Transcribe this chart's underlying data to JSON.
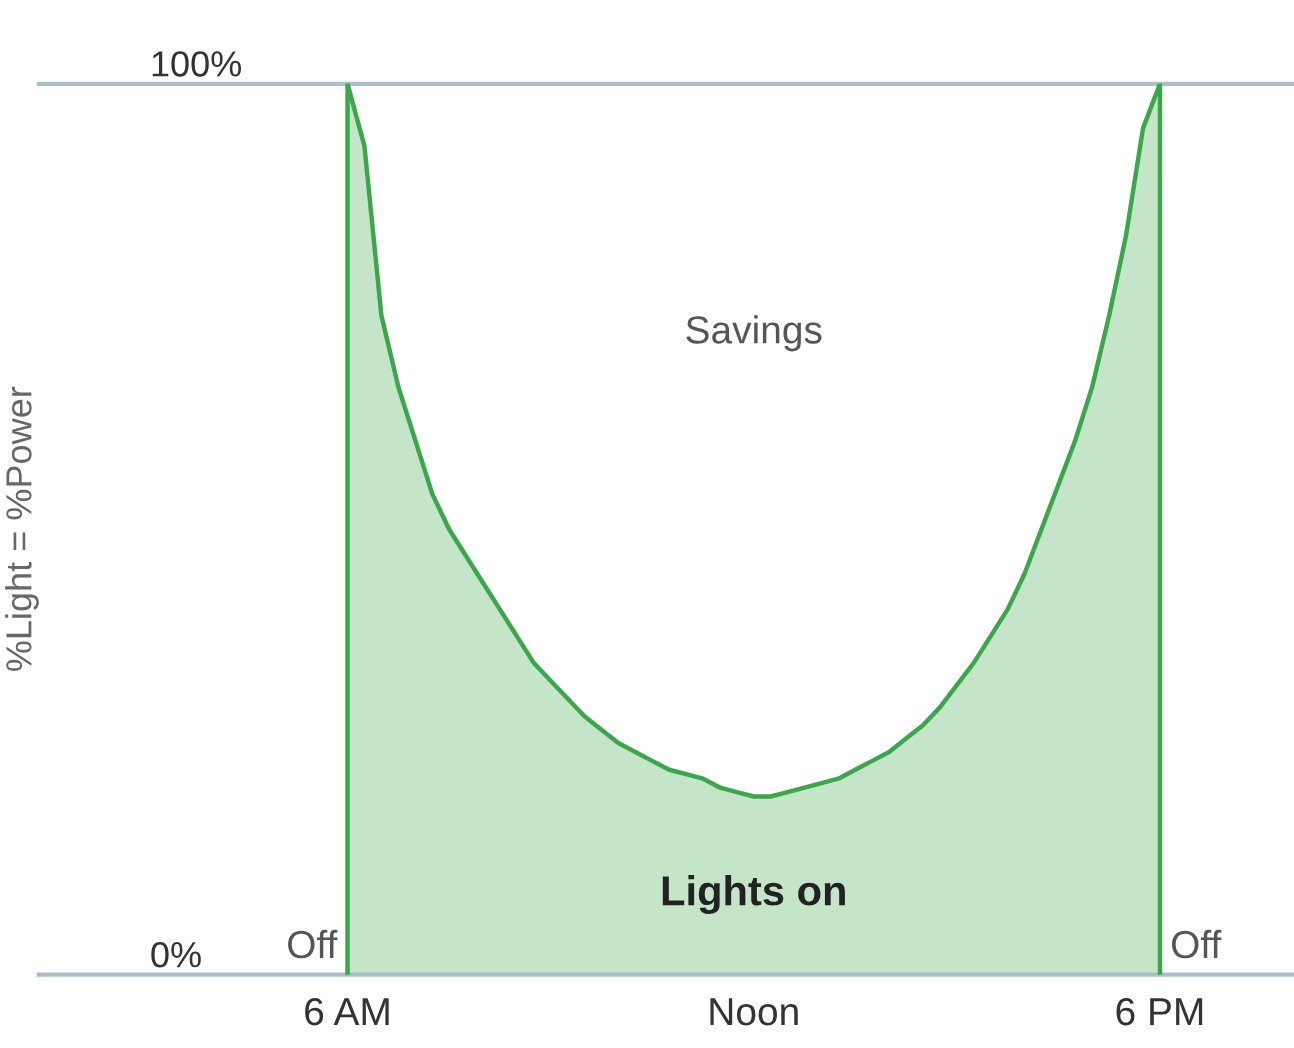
{
  "chart_data": {
    "type": "area",
    "ylabel": "%Light = %Power",
    "categories": [
      "6 AM",
      null,
      null,
      null,
      null,
      null,
      null,
      null,
      null,
      null,
      null,
      null,
      null,
      null,
      null,
      null,
      null,
      null,
      null,
      null,
      null,
      null,
      null,
      null,
      "Noon",
      null,
      null,
      null,
      null,
      null,
      null,
      null,
      null,
      null,
      null,
      null,
      null,
      null,
      null,
      null,
      null,
      null,
      null,
      null,
      null,
      null,
      null,
      null,
      "6 PM"
    ],
    "series": [
      {
        "color": "#3aa84a",
        "values": [
          100,
          93,
          74,
          66,
          60,
          54,
          50,
          47,
          44,
          41,
          38,
          35,
          33,
          31,
          29,
          27.5,
          26,
          25,
          24,
          23,
          22.5,
          22,
          21,
          20.5,
          20,
          20,
          20.5,
          21,
          21.5,
          22,
          23,
          24,
          25,
          26.5,
          28,
          30,
          32.5,
          35,
          38,
          41,
          45,
          50,
          55,
          60,
          66,
          74,
          83,
          95,
          100
        ]
      }
    ],
    "ylim": [
      0,
      100
    ],
    "yticks": [
      {
        "value": 0,
        "label": "0%"
      },
      {
        "value": 100,
        "label": "100%"
      }
    ],
    "ref_lines": [
      {
        "axis": "y",
        "value": 100,
        "color": "#a9bfcc"
      },
      {
        "axis": "x",
        "value": "6 AM",
        "color": "#3aa84a"
      },
      {
        "axis": "x",
        "value": "6 PM",
        "color": "#3aa84a"
      }
    ],
    "annotations": [
      "Savings",
      "Lights on",
      "Off",
      "Off"
    ]
  }
}
